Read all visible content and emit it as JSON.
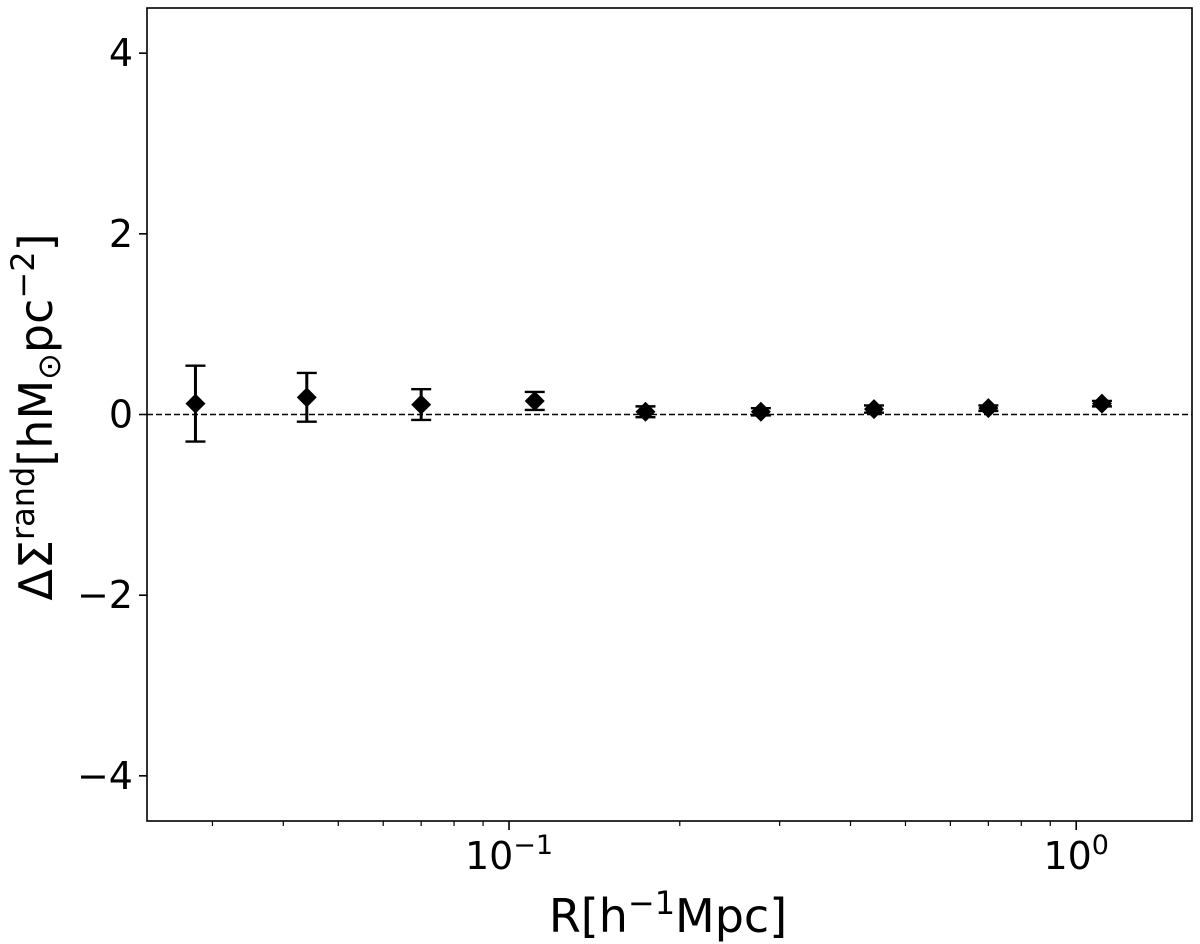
{
  "chart_data": {
    "type": "scatter",
    "title": "",
    "xlabel": {
      "parts": [
        {
          "text": "R[h",
          "style": "normal"
        },
        {
          "text": "−1",
          "style": "sup"
        },
        {
          "text": "Mpc]",
          "style": "normal"
        }
      ]
    },
    "ylabel": {
      "parts": [
        {
          "text": "ΔΣ",
          "style": "normal"
        },
        {
          "text": "rand",
          "style": "sup"
        },
        {
          "text": "[hM",
          "style": "normal"
        },
        {
          "text": "⊙",
          "style": "sub"
        },
        {
          "text": "pc",
          "style": "normal"
        },
        {
          "text": "−2",
          "style": "sup"
        },
        {
          "text": "]",
          "style": "normal"
        }
      ]
    },
    "xscale": "log",
    "xlim": [
      0.023,
      1.6
    ],
    "ylim": [
      -4.5,
      4.5
    ],
    "grid": false,
    "reference_line": {
      "y": 0,
      "style": "dashed",
      "color": "#000000"
    },
    "x_ticks": [
      {
        "value": 0.1,
        "base": "10",
        "exp": "−1"
      },
      {
        "value": 1,
        "base": "10",
        "exp": "0"
      }
    ],
    "y_ticks": [
      {
        "value": 4,
        "label": "4"
      },
      {
        "value": 2,
        "label": "2"
      },
      {
        "value": 0,
        "label": "0"
      },
      {
        "value": -2,
        "label": "−2"
      },
      {
        "value": -4,
        "label": "−4"
      }
    ],
    "marker": {
      "shape": "diamond",
      "color": "#000000"
    },
    "series": [
      {
        "x": [
          0.028,
          0.044,
          0.07,
          0.111,
          0.174,
          0.278,
          0.44,
          0.7,
          1.11
        ],
        "y": [
          0.12,
          0.19,
          0.11,
          0.15,
          0.03,
          0.03,
          0.06,
          0.07,
          0.12
        ],
        "yerr": [
          0.42,
          0.27,
          0.17,
          0.1,
          0.06,
          0.04,
          0.04,
          0.03,
          0.03
        ]
      }
    ]
  }
}
